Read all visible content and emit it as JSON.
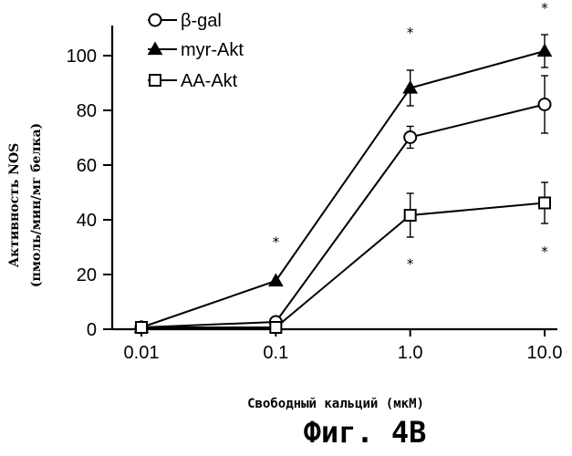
{
  "chart_data": {
    "type": "line",
    "x": [
      "0.01",
      "0.1",
      "1.0",
      "10.0"
    ],
    "x_values": [
      0.01,
      0.1,
      1.0,
      10.0
    ],
    "x_scale": "log",
    "xlabel": "Свободный кальций (мкМ)",
    "ylabel_line1": "Активность NOS",
    "ylabel_line2": "(пмоль/мин/мг белка)",
    "ylim": [
      0,
      110
    ],
    "yticks": [
      0,
      20,
      40,
      60,
      80,
      100
    ],
    "grid": false,
    "legend_position": "top-left",
    "series": [
      {
        "name": "β-gal",
        "marker": "circle-open",
        "values": [
          0,
          2,
          69.5,
          81.5
        ],
        "errors": [
          0,
          0,
          4,
          10.5
        ]
      },
      {
        "name": "myr-Akt",
        "marker": "triangle-filled",
        "values": [
          0,
          17,
          87.5,
          101
        ],
        "errors": [
          0,
          0,
          6.5,
          6
        ]
      },
      {
        "name": "AA-Akt",
        "marker": "square-open",
        "values": [
          0,
          0,
          41,
          45.5
        ],
        "errors": [
          0,
          0,
          8,
          7.5
        ]
      }
    ],
    "annotations": [
      {
        "text": "*",
        "x": 0.1,
        "y": 32.5
      },
      {
        "text": "*",
        "x": 1.0,
        "y": 109
      },
      {
        "text": "*",
        "x": 1.0,
        "y": 24.5
      },
      {
        "text": "*",
        "x": 10.0,
        "y": 118
      },
      {
        "text": "*",
        "x": 10.0,
        "y": 29
      }
    ]
  },
  "caption": "Фиг. 4В"
}
